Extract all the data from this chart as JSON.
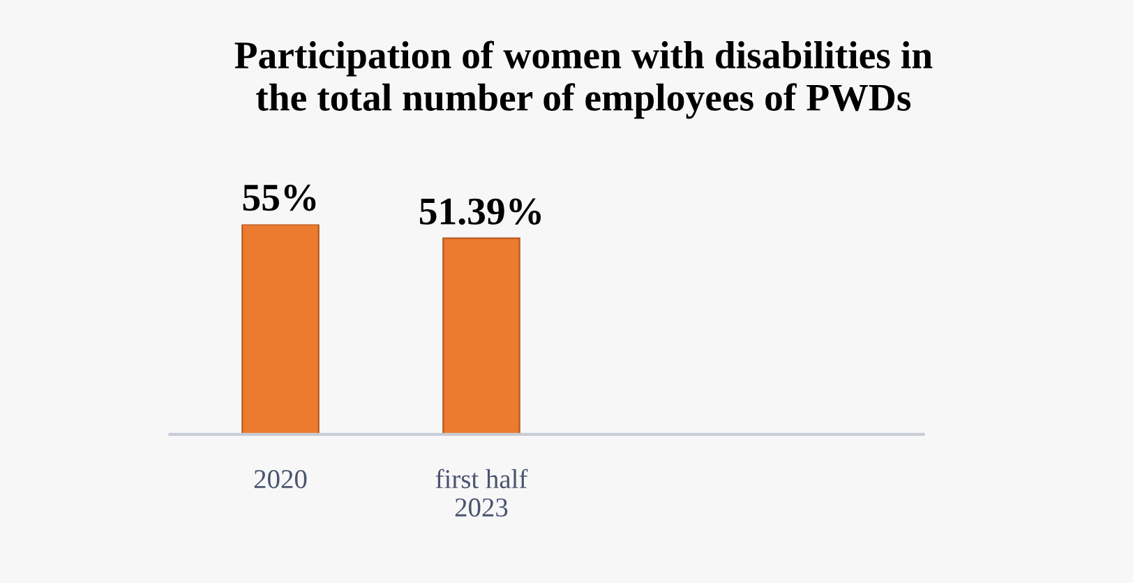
{
  "chart_data": {
    "type": "bar",
    "title": "Participation of women with disabilities in\nthe total number of employees of PWDs",
    "categories": [
      "2020",
      "first half\n2023"
    ],
    "values": [
      55,
      51.39
    ],
    "value_labels": [
      "55%",
      "51.39%"
    ],
    "color": "#ec7a2f",
    "tick_labels": "x",
    "grid": false,
    "legend": false
  }
}
